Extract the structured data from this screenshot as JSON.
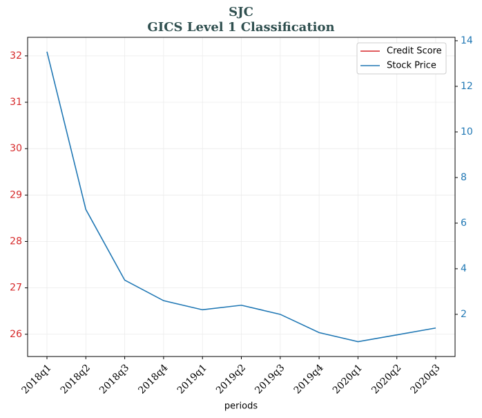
{
  "chart_data": {
    "type": "line",
    "title": "SJC",
    "subtitle": "GICS Level 1 Classification",
    "x_label": "periods",
    "categories": [
      "2018q1",
      "2018q2",
      "2018q3",
      "2018q4",
      "2019q1",
      "2019q2",
      "2019q3",
      "2019q4",
      "2020q1",
      "2020q2",
      "2020q3"
    ],
    "series": [
      {
        "name": "Credit Score",
        "color": "#d62728",
        "values": [
          null,
          null,
          null,
          null,
          null,
          null,
          null,
          null,
          null,
          null,
          null
        ]
      },
      {
        "name": "Stock Price",
        "color": "#1f77b4",
        "axis": "y2",
        "values": [
          13.52,
          6.6,
          3.5,
          2.6,
          2.2,
          2.4,
          2.0,
          1.2,
          0.8,
          1.1,
          1.4
        ]
      }
    ],
    "ylim": [
      25.52,
      32.4
    ],
    "yticks": [
      26,
      27,
      28,
      29,
      30,
      31,
      32
    ],
    "y2lim": [
      0.15,
      14.15
    ],
    "y2ticks": [
      2,
      4,
      6,
      8,
      10,
      12,
      14
    ],
    "grid": true,
    "legend": "upper right"
  }
}
